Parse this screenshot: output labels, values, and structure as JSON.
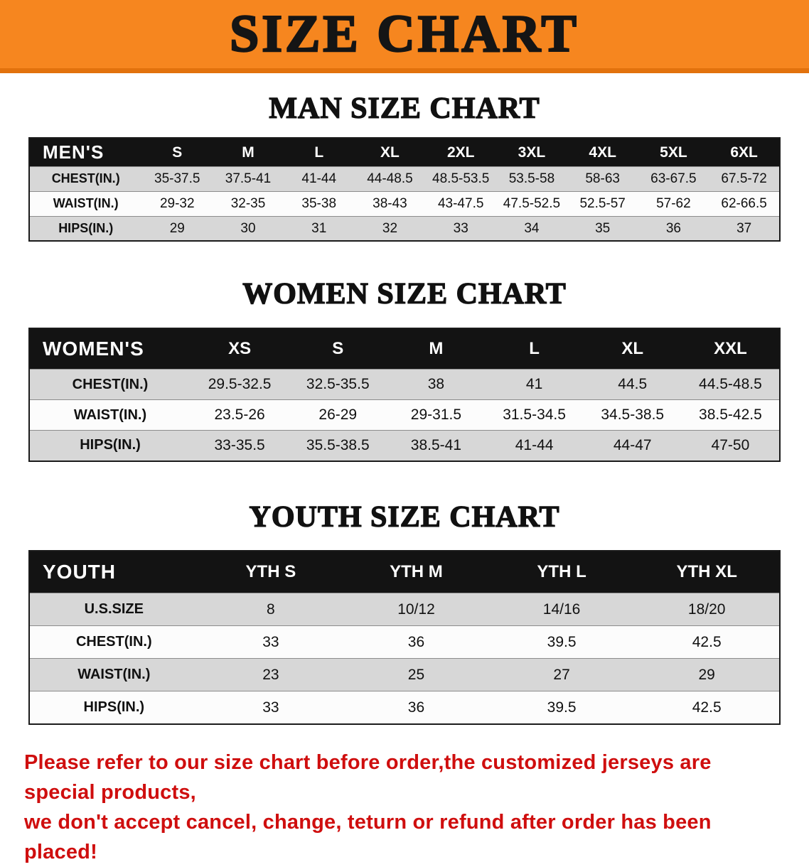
{
  "banner": {
    "title": "SIZE CHART"
  },
  "colors": {
    "banner_orange": "#F6861F",
    "banner_strip": "#E2720D",
    "banner_text": "#151515",
    "header_bg": "#131313",
    "header_text": "#ffffff",
    "row_gray": "#d7d7d7",
    "row_white": "#fcfcfc",
    "disclaimer_red": "#CF0E0E"
  },
  "sections": [
    {
      "heading": "MAN SIZE CHART",
      "table": {
        "header": [
          "MEN'S",
          "S",
          "M",
          "L",
          "XL",
          "2XL",
          "3XL",
          "4XL",
          "5XL",
          "6XL"
        ],
        "rows": [
          [
            "CHEST(IN.)",
            "35-37.5",
            "37.5-41",
            "41-44",
            "44-48.5",
            "48.5-53.5",
            "53.5-58",
            "58-63",
            "63-67.5",
            "67.5-72"
          ],
          [
            "WAIST(IN.)",
            "29-32",
            "32-35",
            "35-38",
            "38-43",
            "43-47.5",
            "47.5-52.5",
            "52.5-57",
            "57-62",
            "62-66.5"
          ],
          [
            "HIPS(IN.)",
            "29",
            "30",
            "31",
            "32",
            "33",
            "34",
            "35",
            "36",
            "37"
          ]
        ]
      }
    },
    {
      "heading": "WOMEN SIZE CHART",
      "table": {
        "header": [
          "WOMEN'S",
          "XS",
          "S",
          "M",
          "L",
          "XL",
          "XXL"
        ],
        "rows": [
          [
            "CHEST(IN.)",
            "29.5-32.5",
            "32.5-35.5",
            "38",
            "41",
            "44.5",
            "44.5-48.5"
          ],
          [
            "WAIST(IN.)",
            "23.5-26",
            "26-29",
            "29-31.5",
            "31.5-34.5",
            "34.5-38.5",
            "38.5-42.5"
          ],
          [
            "HIPS(IN.)",
            "33-35.5",
            "35.5-38.5",
            "38.5-41",
            "41-44",
            "44-47",
            "47-50"
          ]
        ]
      }
    },
    {
      "heading": "YOUTH SIZE CHART",
      "table": {
        "header": [
          "YOUTH",
          "YTH S",
          "YTH M",
          "YTH L",
          "YTH XL"
        ],
        "rows": [
          [
            "U.S.SIZE",
            "8",
            "10/12",
            "14/16",
            "18/20"
          ],
          [
            "CHEST(IN.)",
            "33",
            "36",
            "39.5",
            "42.5"
          ],
          [
            "WAIST(IN.)",
            "23",
            "25",
            "27",
            "29"
          ],
          [
            "HIPS(IN.)",
            "33",
            "36",
            "39.5",
            "42.5"
          ]
        ]
      }
    }
  ],
  "disclaimer": {
    "line1": "Please refer to our size chart before order,the customized jerseys are special products,",
    "line2": "we don't accept cancel, change, teturn or refund after order has been placed!"
  }
}
